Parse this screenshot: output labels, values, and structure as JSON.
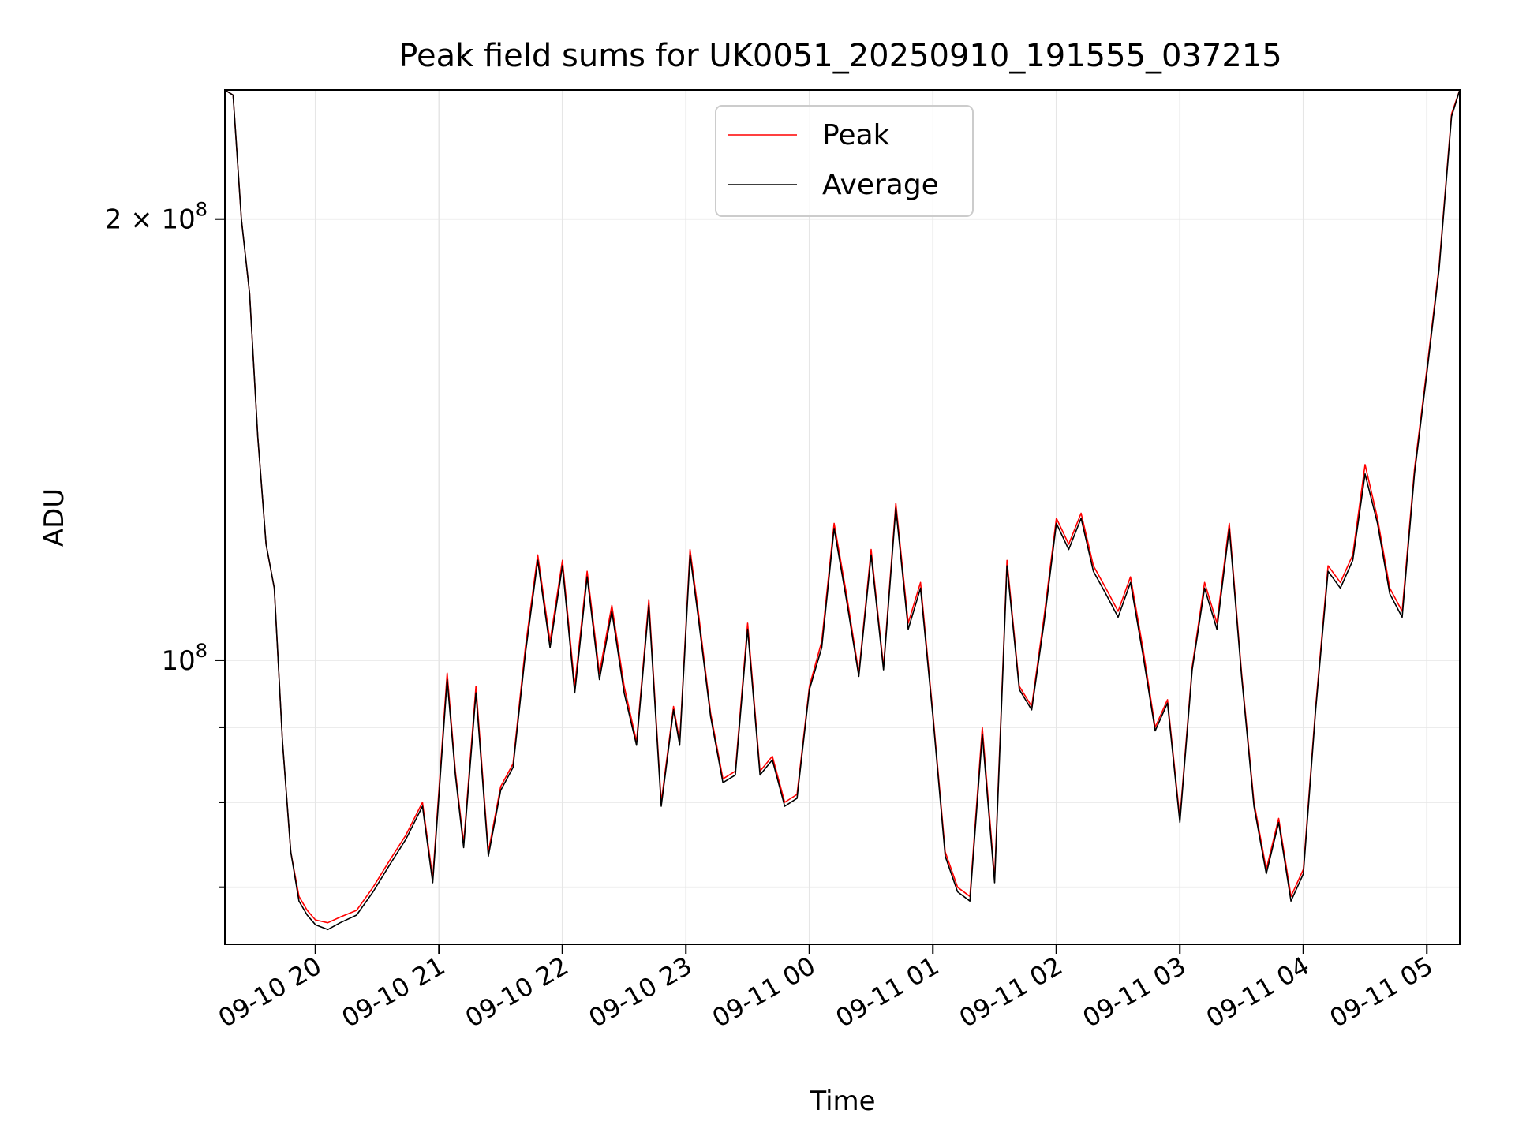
{
  "chart_data": {
    "type": "line",
    "title": "Peak field sums for UK0051_20250910_191555_037215",
    "xlabel": "Time",
    "ylabel": "ADU",
    "y_scale": "log",
    "ylim": [
      64000000,
      245000000
    ],
    "xlim": [
      "2025-09-10 19:16",
      "2025-09-11 05:16"
    ],
    "grid": true,
    "legend_position": "top-center",
    "x_ticks": [
      "2025-09-10 20:00",
      "2025-09-10 21:00",
      "2025-09-10 22:00",
      "2025-09-10 23:00",
      "2025-09-11 00:00",
      "2025-09-11 01:00",
      "2025-09-11 02:00",
      "2025-09-11 03:00",
      "2025-09-11 04:00",
      "2025-09-11 05:00"
    ],
    "x_tick_labels": [
      "09-10 20",
      "09-10 21",
      "09-10 22",
      "09-10 23",
      "09-11 00",
      "09-11 01",
      "09-11 02",
      "09-11 03",
      "09-11 04",
      "09-11 05"
    ],
    "y_major_ticks": [
      {
        "value": 100000000,
        "base": "10",
        "exp": "8",
        "coef": ""
      },
      {
        "value": 200000000,
        "base": "10",
        "exp": "8",
        "coef": "2 × "
      }
    ],
    "y_minor_ticks": [
      70000000,
      80000000,
      90000000
    ],
    "series": [
      {
        "name": "Peak",
        "color": "#ff0000",
        "x": [
          "2025-09-10 19:16",
          "2025-09-10 19:20",
          "2025-09-10 19:24",
          "2025-09-10 19:28",
          "2025-09-10 19:32",
          "2025-09-10 19:36",
          "2025-09-10 19:40",
          "2025-09-10 19:44",
          "2025-09-10 19:48",
          "2025-09-10 19:52",
          "2025-09-10 19:56",
          "2025-09-10 20:00",
          "2025-09-10 20:06",
          "2025-09-10 20:12",
          "2025-09-10 20:20",
          "2025-09-10 20:28",
          "2025-09-10 20:36",
          "2025-09-10 20:44",
          "2025-09-10 20:52",
          "2025-09-10 20:57",
          "2025-09-10 21:04",
          "2025-09-10 21:08",
          "2025-09-10 21:12",
          "2025-09-10 21:18",
          "2025-09-10 21:24",
          "2025-09-10 21:30",
          "2025-09-10 21:36",
          "2025-09-10 21:42",
          "2025-09-10 21:48",
          "2025-09-10 21:54",
          "2025-09-10 22:00",
          "2025-09-10 22:06",
          "2025-09-10 22:12",
          "2025-09-10 22:18",
          "2025-09-10 22:24",
          "2025-09-10 22:30",
          "2025-09-10 22:36",
          "2025-09-10 22:42",
          "2025-09-10 22:48",
          "2025-09-10 22:54",
          "2025-09-10 22:57",
          "2025-09-10 23:02",
          "2025-09-10 23:06",
          "2025-09-10 23:12",
          "2025-09-10 23:18",
          "2025-09-10 23:24",
          "2025-09-10 23:30",
          "2025-09-10 23:36",
          "2025-09-10 23:42",
          "2025-09-10 23:48",
          "2025-09-10 23:54",
          "2025-09-11 00:00",
          "2025-09-11 00:06",
          "2025-09-11 00:12",
          "2025-09-11 00:18",
          "2025-09-11 00:24",
          "2025-09-11 00:30",
          "2025-09-11 00:36",
          "2025-09-11 00:42",
          "2025-09-11 00:48",
          "2025-09-11 00:54",
          "2025-09-11 01:00",
          "2025-09-11 01:06",
          "2025-09-11 01:12",
          "2025-09-11 01:18",
          "2025-09-11 01:24",
          "2025-09-11 01:30",
          "2025-09-11 01:36",
          "2025-09-11 01:42",
          "2025-09-11 01:48",
          "2025-09-11 01:54",
          "2025-09-11 02:00",
          "2025-09-11 02:06",
          "2025-09-11 02:12",
          "2025-09-11 02:18",
          "2025-09-11 02:24",
          "2025-09-11 02:30",
          "2025-09-11 02:36",
          "2025-09-11 02:42",
          "2025-09-11 02:48",
          "2025-09-11 02:54",
          "2025-09-11 03:00",
          "2025-09-11 03:06",
          "2025-09-11 03:12",
          "2025-09-11 03:18",
          "2025-09-11 03:24",
          "2025-09-11 03:30",
          "2025-09-11 03:36",
          "2025-09-11 03:42",
          "2025-09-11 03:48",
          "2025-09-11 03:54",
          "2025-09-11 04:00",
          "2025-09-11 04:06",
          "2025-09-11 04:12",
          "2025-09-11 04:18",
          "2025-09-11 04:24",
          "2025-09-11 04:30",
          "2025-09-11 04:36",
          "2025-09-11 04:42",
          "2025-09-11 04:48",
          "2025-09-11 04:54",
          "2025-09-11 05:00",
          "2025-09-11 05:06",
          "2025-09-11 05:12",
          "2025-09-11 05:16"
        ],
        "values": [
          245000000,
          243000000,
          200000000,
          178000000,
          142000000,
          120000000,
          112000000,
          88000000,
          74000000,
          69000000,
          67500000,
          66500000,
          66200000,
          66800000,
          67500000,
          70000000,
          73000000,
          76000000,
          80000000,
          71000000,
          98000000,
          84000000,
          75000000,
          96000000,
          74000000,
          82000000,
          85000000,
          102000000,
          118000000,
          103000000,
          117000000,
          96000000,
          115000000,
          98000000,
          109000000,
          96000000,
          88000000,
          110000000,
          80000000,
          93000000,
          88000000,
          119000000,
          108000000,
          92000000,
          83000000,
          84000000,
          106000000,
          84000000,
          86000000,
          80000000,
          81000000,
          96000000,
          103000000,
          124000000,
          111000000,
          98000000,
          119000000,
          99000000,
          128000000,
          106000000,
          113000000,
          92000000,
          74000000,
          70000000,
          69000000,
          90000000,
          71000000,
          117000000,
          96000000,
          93000000,
          107000000,
          125000000,
          120000000,
          126000000,
          116000000,
          112000000,
          108000000,
          114000000,
          102000000,
          90000000,
          94000000,
          78000000,
          99000000,
          113000000,
          106000000,
          124000000,
          98000000,
          80000000,
          72000000,
          78000000,
          69000000,
          72000000,
          93000000,
          116000000,
          113000000,
          118000000,
          136000000,
          125000000,
          112000000,
          108000000,
          135000000,
          158000000,
          186000000,
          236000000,
          245000000
        ]
      },
      {
        "name": "Average",
        "color": "#000000",
        "x": [
          "2025-09-10 19:16",
          "2025-09-10 19:20",
          "2025-09-10 19:24",
          "2025-09-10 19:28",
          "2025-09-10 19:32",
          "2025-09-10 19:36",
          "2025-09-10 19:40",
          "2025-09-10 19:44",
          "2025-09-10 19:48",
          "2025-09-10 19:52",
          "2025-09-10 19:56",
          "2025-09-10 20:00",
          "2025-09-10 20:06",
          "2025-09-10 20:12",
          "2025-09-10 20:20",
          "2025-09-10 20:28",
          "2025-09-10 20:36",
          "2025-09-10 20:44",
          "2025-09-10 20:52",
          "2025-09-10 20:57",
          "2025-09-10 21:04",
          "2025-09-10 21:08",
          "2025-09-10 21:12",
          "2025-09-10 21:18",
          "2025-09-10 21:24",
          "2025-09-10 21:30",
          "2025-09-10 21:36",
          "2025-09-10 21:42",
          "2025-09-10 21:48",
          "2025-09-10 21:54",
          "2025-09-10 22:00",
          "2025-09-10 22:06",
          "2025-09-10 22:12",
          "2025-09-10 22:18",
          "2025-09-10 22:24",
          "2025-09-10 22:30",
          "2025-09-10 22:36",
          "2025-09-10 22:42",
          "2025-09-10 22:48",
          "2025-09-10 22:54",
          "2025-09-10 22:57",
          "2025-09-10 23:02",
          "2025-09-10 23:06",
          "2025-09-10 23:12",
          "2025-09-10 23:18",
          "2025-09-10 23:24",
          "2025-09-10 23:30",
          "2025-09-10 23:36",
          "2025-09-10 23:42",
          "2025-09-10 23:48",
          "2025-09-10 23:54",
          "2025-09-11 00:00",
          "2025-09-11 00:06",
          "2025-09-11 00:12",
          "2025-09-11 00:18",
          "2025-09-11 00:24",
          "2025-09-11 00:30",
          "2025-09-11 00:36",
          "2025-09-11 00:42",
          "2025-09-11 00:48",
          "2025-09-11 00:54",
          "2025-09-11 01:00",
          "2025-09-11 01:06",
          "2025-09-11 01:12",
          "2025-09-11 01:18",
          "2025-09-11 01:24",
          "2025-09-11 01:30",
          "2025-09-11 01:36",
          "2025-09-11 01:42",
          "2025-09-11 01:48",
          "2025-09-11 01:54",
          "2025-09-11 02:00",
          "2025-09-11 02:06",
          "2025-09-11 02:12",
          "2025-09-11 02:18",
          "2025-09-11 02:24",
          "2025-09-11 02:30",
          "2025-09-11 02:36",
          "2025-09-11 02:42",
          "2025-09-11 02:48",
          "2025-09-11 02:54",
          "2025-09-11 03:00",
          "2025-09-11 03:06",
          "2025-09-11 03:12",
          "2025-09-11 03:18",
          "2025-09-11 03:24",
          "2025-09-11 03:30",
          "2025-09-11 03:36",
          "2025-09-11 03:42",
          "2025-09-11 03:48",
          "2025-09-11 03:54",
          "2025-09-11 04:00",
          "2025-09-11 04:06",
          "2025-09-11 04:12",
          "2025-09-11 04:18",
          "2025-09-11 04:24",
          "2025-09-11 04:30",
          "2025-09-11 04:36",
          "2025-09-11 04:42",
          "2025-09-11 04:48",
          "2025-09-11 04:54",
          "2025-09-11 05:00",
          "2025-09-11 05:06",
          "2025-09-11 05:12",
          "2025-09-11 05:16"
        ],
        "values": [
          245000000,
          243000000,
          200000000,
          178000000,
          142000000,
          120000000,
          112000000,
          88000000,
          74000000,
          68500000,
          67000000,
          66000000,
          65500000,
          66200000,
          67000000,
          69500000,
          72500000,
          75500000,
          79500000,
          70500000,
          97000000,
          83500000,
          74500000,
          95000000,
          73500000,
          81500000,
          84500000,
          101000000,
          117000000,
          102000000,
          116000000,
          95000000,
          114000000,
          97000000,
          108000000,
          95000000,
          87500000,
          109000000,
          79500000,
          92500000,
          87500000,
          118000000,
          107000000,
          91500000,
          82500000,
          83500000,
          105000000,
          83500000,
          85500000,
          79500000,
          80500000,
          95500000,
          102000000,
          123000000,
          110000000,
          97500000,
          118000000,
          98500000,
          127000000,
          105000000,
          112000000,
          91500000,
          73500000,
          69500000,
          68500000,
          89000000,
          70500000,
          116000000,
          95500000,
          92500000,
          106000000,
          124000000,
          119000000,
          125000000,
          115000000,
          111000000,
          107000000,
          113000000,
          101000000,
          89500000,
          93500000,
          77500000,
          98500000,
          112000000,
          105000000,
          123000000,
          97500000,
          79500000,
          71500000,
          77500000,
          68500000,
          71500000,
          92500000,
          115000000,
          112000000,
          117000000,
          134000000,
          124000000,
          111000000,
          107000000,
          134000000,
          157000000,
          185000000,
          235000000,
          245000000
        ]
      }
    ]
  }
}
